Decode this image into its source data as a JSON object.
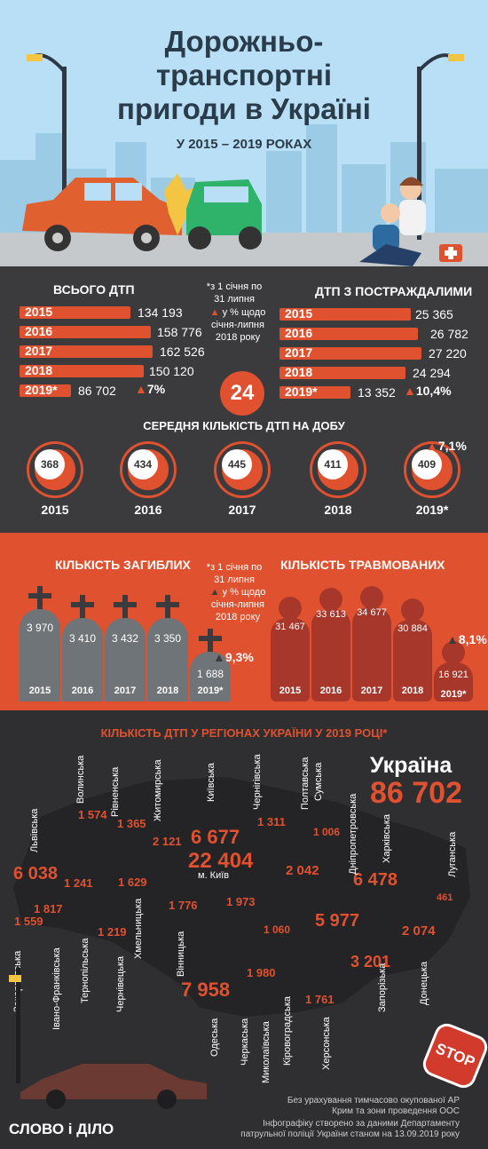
{
  "title": "Дорожньо-транспортні пригоди в Україні",
  "subtitle": "У 2015 – 2019 РОКАХ",
  "total": {
    "heading": "ВСЬОГО ДТП",
    "rows": [
      {
        "year": "2015",
        "value": "134 193"
      },
      {
        "year": "2016",
        "value": "158 776"
      },
      {
        "year": "2017",
        "value": "162 526"
      },
      {
        "year": "2018",
        "value": "150 120"
      },
      {
        "year": "2019*",
        "value": "86 702"
      }
    ],
    "change": "7%"
  },
  "note": "*з 1 січня по 31 липня",
  "note2": "у % щодо січня-липня 2018 року",
  "injured_dtp": {
    "heading": "ДТП З ПОСТРАЖДАЛИМИ",
    "rows": [
      {
        "year": "2015",
        "value": "25 365"
      },
      {
        "year": "2016",
        "value": "26 782"
      },
      {
        "year": "2017",
        "value": "27 220"
      },
      {
        "year": "2018",
        "value": "24 294"
      },
      {
        "year": "2019*",
        "value": "13 352"
      }
    ],
    "change": "10,4%"
  },
  "hours_badge": "24",
  "daily": {
    "heading": "СЕРЕДНЯ КІЛЬКІСТЬ ДТП НА ДОБУ",
    "items": [
      {
        "year": "2015",
        "value": "368"
      },
      {
        "year": "2016",
        "value": "434"
      },
      {
        "year": "2017",
        "value": "445"
      },
      {
        "year": "2018",
        "value": "411"
      },
      {
        "year": "2019*",
        "value": "409"
      }
    ],
    "change": "7,1%"
  },
  "deaths": {
    "heading": "КІЛЬКІСТЬ ЗАГИБЛИХ",
    "items": [
      {
        "year": "2015",
        "value": "3 970"
      },
      {
        "year": "2016",
        "value": "3 410"
      },
      {
        "year": "2017",
        "value": "3 432"
      },
      {
        "year": "2018",
        "value": "3 350"
      },
      {
        "year": "2019*",
        "value": "1 688"
      }
    ],
    "change": "9,3%"
  },
  "injured": {
    "heading": "КІЛЬКІСТЬ ТРАВМОВАНИХ",
    "items": [
      {
        "year": "2015",
        "value": "31 467"
      },
      {
        "year": "2016",
        "value": "33 613"
      },
      {
        "year": "2017",
        "value": "34 677"
      },
      {
        "year": "2018",
        "value": "30 884"
      },
      {
        "year": "2019*",
        "value": "16 921"
      }
    ],
    "change": "8,1%"
  },
  "regions": {
    "heading": "КІЛЬКІСТЬ ДТП У РЕГІОНАХ УКРАЇНИ У 2019 РОЦІ*",
    "country": "Україна",
    "country_total": "86 702",
    "kyiv_city": "м. Київ"
  },
  "footer": {
    "note1": "Без урахування тимчасово окупованої АР Крим та зони проведення ООС",
    "note2": "Інфографіку створено за даними Департаменту патрульної поліції України станом на 13.09.2019 року",
    "logo": "СЛОВО і ДІЛО",
    "stop": "STOP"
  }
}
